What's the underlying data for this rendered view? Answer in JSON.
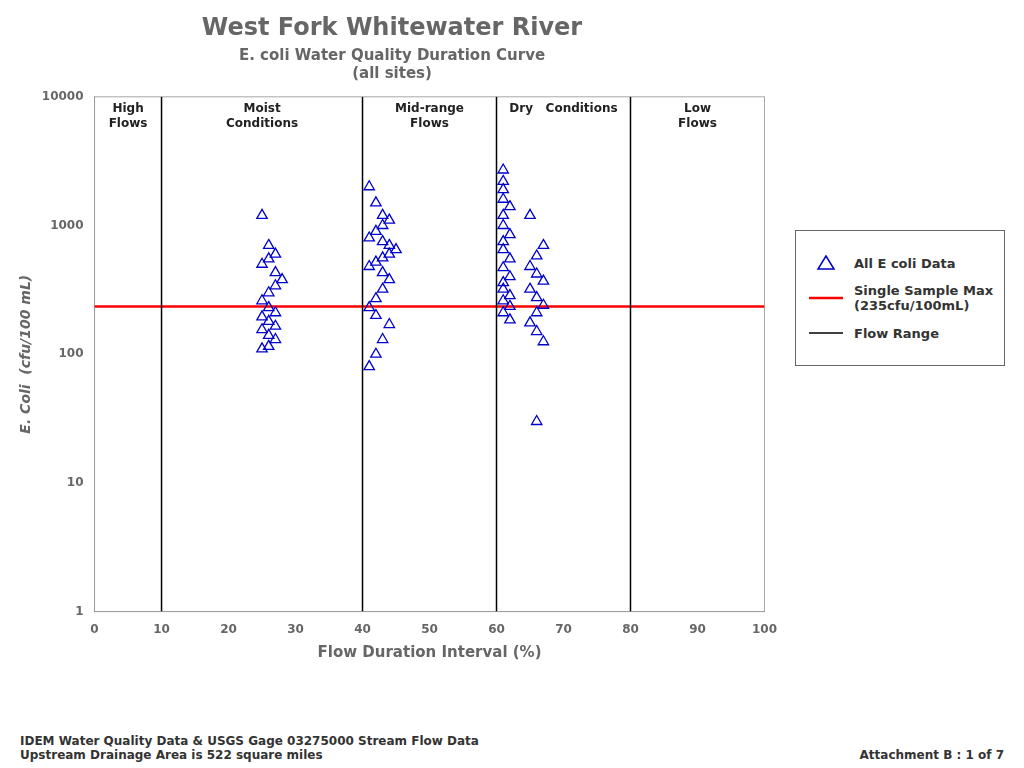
{
  "chart_data": {
    "type": "scatter",
    "title": "West Fork Whitewater River",
    "subtitle": [
      "E. coli Water Quality Duration Curve",
      "(all sites)"
    ],
    "x_label": "Flow Duration Interval (%)",
    "y_label": "E. Coli  (cfu/100 mL)",
    "x": [
      25,
      26,
      27,
      26,
      25,
      27,
      28,
      27,
      26,
      25,
      26,
      27,
      25,
      26,
      27,
      25,
      26,
      27,
      26,
      25,
      41,
      42,
      43,
      44,
      43,
      42,
      41,
      43,
      44,
      45,
      44,
      43,
      42,
      41,
      43,
      44,
      43,
      42,
      41,
      42,
      44,
      43,
      42,
      41,
      61,
      61,
      61,
      61,
      62,
      61,
      61,
      62,
      61,
      61,
      62,
      61,
      62,
      61,
      61,
      62,
      61,
      62,
      61,
      62,
      65,
      67,
      66,
      65,
      66,
      67,
      65,
      66,
      67,
      66,
      65,
      66,
      67,
      66
    ],
    "series": [
      {
        "name": "All E coli Data",
        "color": "#0000CC",
        "marker": "triangle",
        "values": [
          1200,
          700,
          600,
          550,
          500,
          430,
          380,
          340,
          300,
          260,
          230,
          210,
          195,
          180,
          165,
          155,
          140,
          130,
          115,
          110,
          2000,
          1500,
          1200,
          1100,
          1000,
          900,
          800,
          750,
          700,
          650,
          600,
          560,
          520,
          480,
          430,
          380,
          320,
          270,
          230,
          200,
          170,
          130,
          100,
          80,
          2700,
          2200,
          1900,
          1600,
          1400,
          1200,
          1000,
          850,
          750,
          650,
          550,
          470,
          400,
          360,
          320,
          285,
          260,
          235,
          210,
          185,
          1200,
          700,
          580,
          480,
          420,
          370,
          320,
          275,
          240,
          210,
          175,
          150,
          125,
          30
        ]
      }
    ],
    "reference_lines": [
      {
        "name": "Single Sample Max\n(235cfu/100mL)",
        "type": "hline",
        "color": "red",
        "values": [
          235
        ]
      },
      {
        "name": "Flow Range",
        "type": "vline",
        "color": "black",
        "values": [
          10,
          40,
          60,
          80
        ]
      }
    ],
    "annotations": [
      {
        "text": "High\nFlows",
        "x": 5
      },
      {
        "text": "Moist\nConditions",
        "x": 25
      },
      {
        "text": "Mid-range\nFlows",
        "x": 50
      },
      {
        "text": "Dry   Conditions",
        "x": 70
      },
      {
        "text": "Low\nFlows",
        "x": 90
      }
    ],
    "footnotes": [
      "IDEM Water Quality Data & USGS Gage 03275000 Stream Flow Data\nUpstream Drainage Area is 522 square miles",
      "Attachment B : 1 of 7"
    ],
    "xlim": [
      0,
      100
    ],
    "ylim": [
      1,
      10000
    ],
    "xticks": [
      0,
      10,
      20,
      30,
      40,
      50,
      60,
      70,
      80,
      90,
      100
    ],
    "yticks": [
      1,
      10,
      100,
      1000,
      10000
    ],
    "log": "y",
    "grid": false,
    "legend": "right"
  }
}
